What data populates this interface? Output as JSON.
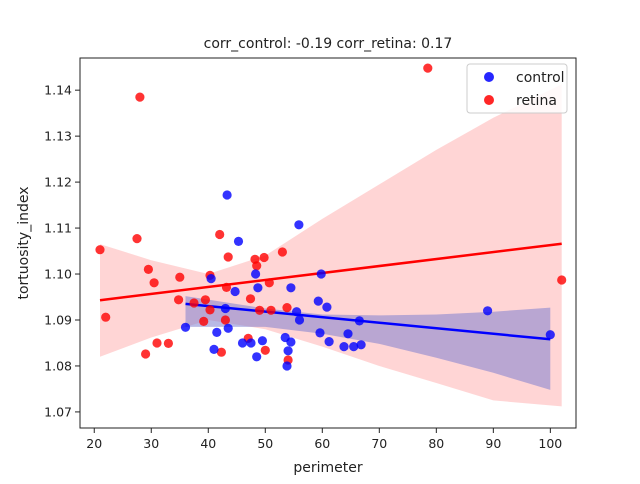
{
  "chart_data": {
    "type": "scatter",
    "title": "corr_control: -0.19  corr_retina: 0.17",
    "xlabel": "perimeter",
    "ylabel": "tortuosity_index",
    "xlim": [
      17.5,
      104.5
    ],
    "ylim": [
      1.0665,
      1.147
    ],
    "x_ticks": [
      20,
      30,
      40,
      50,
      60,
      70,
      80,
      90,
      100
    ],
    "y_ticks": [
      1.07,
      1.08,
      1.09,
      1.1,
      1.11,
      1.12,
      1.13,
      1.14
    ],
    "grid": false,
    "legend_position": "top-right",
    "series": [
      {
        "name": "control",
        "color": "#0000ff",
        "band_color": "#7f7fcf",
        "regression": {
          "x": [
            36,
            100
          ],
          "y": [
            1.0935,
            1.0858
          ]
        },
        "ci_upper": [
          [
            36,
            1.0952
          ],
          [
            50,
            1.0925
          ],
          [
            60,
            1.0912
          ],
          [
            70,
            1.091
          ],
          [
            80,
            1.0912
          ],
          [
            90,
            1.0918
          ],
          [
            100,
            1.0927
          ]
        ],
        "ci_lower": [
          [
            36,
            1.0885
          ],
          [
            50,
            1.0885
          ],
          [
            60,
            1.087
          ],
          [
            70,
            1.0848
          ],
          [
            80,
            1.0818
          ],
          [
            90,
            1.0785
          ],
          [
            100,
            1.0748
          ]
        ],
        "points": [
          {
            "x": 36.0,
            "y": 1.0884
          },
          {
            "x": 41.0,
            "y": 1.0836
          },
          {
            "x": 41.5,
            "y": 1.0873
          },
          {
            "x": 40.5,
            "y": 1.099
          },
          {
            "x": 43.0,
            "y": 1.0925
          },
          {
            "x": 43.5,
            "y": 1.0882
          },
          {
            "x": 43.3,
            "y": 1.1172
          },
          {
            "x": 45.3,
            "y": 1.1071
          },
          {
            "x": 46.0,
            "y": 1.085
          },
          {
            "x": 47.5,
            "y": 1.085
          },
          {
            "x": 48.3,
            "y": 1.1
          },
          {
            "x": 48.7,
            "y": 1.097
          },
          {
            "x": 48.5,
            "y": 1.082
          },
          {
            "x": 49.5,
            "y": 1.0855
          },
          {
            "x": 44.7,
            "y": 1.0962
          },
          {
            "x": 53.5,
            "y": 1.0862
          },
          {
            "x": 53.8,
            "y": 1.08
          },
          {
            "x": 54.0,
            "y": 1.0833
          },
          {
            "x": 54.5,
            "y": 1.097
          },
          {
            "x": 54.5,
            "y": 1.0852
          },
          {
            "x": 55.5,
            "y": 1.0918
          },
          {
            "x": 56.0,
            "y": 1.09
          },
          {
            "x": 55.9,
            "y": 1.1107
          },
          {
            "x": 59.3,
            "y": 1.0941
          },
          {
            "x": 59.8,
            "y": 1.1
          },
          {
            "x": 59.6,
            "y": 1.0872
          },
          {
            "x": 60.8,
            "y": 1.0928
          },
          {
            "x": 61.2,
            "y": 1.0853
          },
          {
            "x": 63.8,
            "y": 1.0842
          },
          {
            "x": 64.5,
            "y": 1.087
          },
          {
            "x": 65.5,
            "y": 1.0842
          },
          {
            "x": 66.5,
            "y": 1.0898
          },
          {
            "x": 66.8,
            "y": 1.0846
          },
          {
            "x": 89.0,
            "y": 1.092
          },
          {
            "x": 100.0,
            "y": 1.0868
          }
        ]
      },
      {
        "name": "retina",
        "color": "#ff0000",
        "band_color": "#ffb3b3",
        "regression": {
          "x": [
            21,
            102
          ],
          "y": [
            1.0943,
            1.1066
          ]
        },
        "ci_upper": [
          [
            21,
            1.1065
          ],
          [
            30,
            1.103
          ],
          [
            40,
            1.1
          ],
          [
            50,
            1.104
          ],
          [
            60,
            1.112
          ],
          [
            70,
            1.1195
          ],
          [
            80,
            1.127
          ],
          [
            90,
            1.134
          ],
          [
            102,
            1.1413
          ]
        ],
        "ci_lower": [
          [
            21,
            1.082
          ],
          [
            30,
            1.0862
          ],
          [
            40,
            1.09
          ],
          [
            50,
            1.088
          ],
          [
            60,
            1.0842
          ],
          [
            70,
            1.08
          ],
          [
            80,
            1.0763
          ],
          [
            90,
            1.0725
          ],
          [
            102,
            1.0712
          ]
        ],
        "points": [
          {
            "x": 21.0,
            "y": 1.1053
          },
          {
            "x": 22.0,
            "y": 1.0906
          },
          {
            "x": 27.5,
            "y": 1.1077
          },
          {
            "x": 28.0,
            "y": 1.1385
          },
          {
            "x": 29.0,
            "y": 1.0826
          },
          {
            "x": 29.5,
            "y": 1.101
          },
          {
            "x": 30.5,
            "y": 1.0981
          },
          {
            "x": 31.0,
            "y": 1.085
          },
          {
            "x": 33.0,
            "y": 1.0849
          },
          {
            "x": 35.0,
            "y": 1.0993
          },
          {
            "x": 34.8,
            "y": 1.0944
          },
          {
            "x": 37.5,
            "y": 1.0937
          },
          {
            "x": 39.5,
            "y": 1.0944
          },
          {
            "x": 39.2,
            "y": 1.0897
          },
          {
            "x": 40.3,
            "y": 1.0997
          },
          {
            "x": 40.3,
            "y": 1.0922
          },
          {
            "x": 42.0,
            "y": 1.1086
          },
          {
            "x": 42.3,
            "y": 1.083
          },
          {
            "x": 43.0,
            "y": 1.09
          },
          {
            "x": 43.2,
            "y": 1.0971
          },
          {
            "x": 43.5,
            "y": 1.1037
          },
          {
            "x": 47.0,
            "y": 1.086
          },
          {
            "x": 47.4,
            "y": 1.0946
          },
          {
            "x": 48.2,
            "y": 1.1032
          },
          {
            "x": 48.5,
            "y": 1.1018
          },
          {
            "x": 49.0,
            "y": 1.0921
          },
          {
            "x": 49.8,
            "y": 1.1036
          },
          {
            "x": 50.0,
            "y": 1.0834
          },
          {
            "x": 50.7,
            "y": 1.0981
          },
          {
            "x": 51.0,
            "y": 1.0921
          },
          {
            "x": 53.0,
            "y": 1.1048
          },
          {
            "x": 53.8,
            "y": 1.0927
          },
          {
            "x": 54.0,
            "y": 1.0813
          },
          {
            "x": 78.5,
            "y": 1.1448
          },
          {
            "x": 102.0,
            "y": 1.0987
          }
        ]
      }
    ]
  }
}
